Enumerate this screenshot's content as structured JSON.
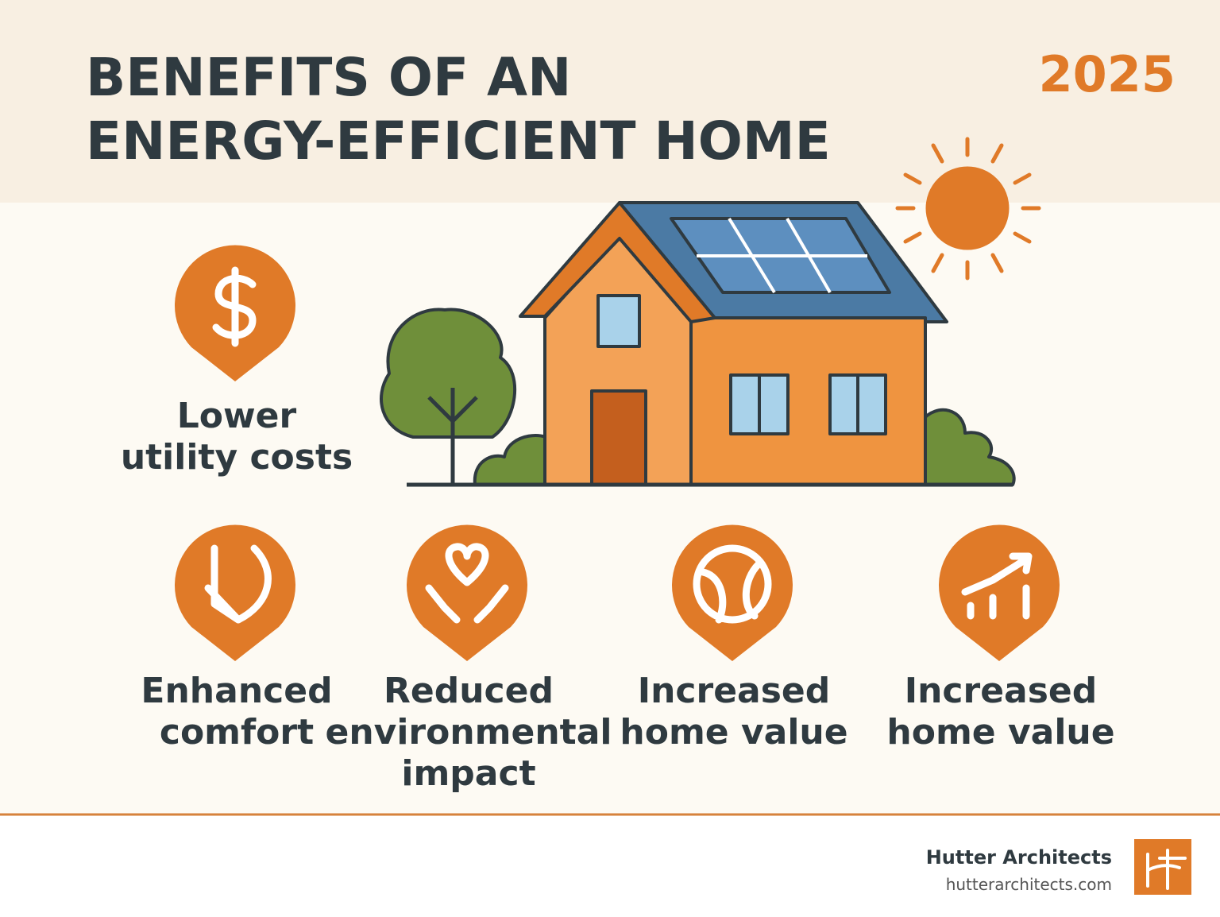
{
  "header": {
    "title": [
      "BENEFITS OF AN",
      "ENERGY-EFFICIENT HOME"
    ],
    "year": "2025"
  },
  "benefits": [
    {
      "label": [
        "Lower",
        "utility costs"
      ]
    },
    {
      "label": [
        "Enhanced",
        "comfort"
      ]
    },
    {
      "label": [
        "Reduced",
        "environmental",
        "impact"
      ]
    },
    {
      "label": [
        "Increased",
        "home value"
      ]
    },
    {
      "label": [
        "Increased",
        "home value"
      ]
    }
  ],
  "footer": {
    "company": "Hutter Architects",
    "website": "hutterarchitects.com"
  }
}
